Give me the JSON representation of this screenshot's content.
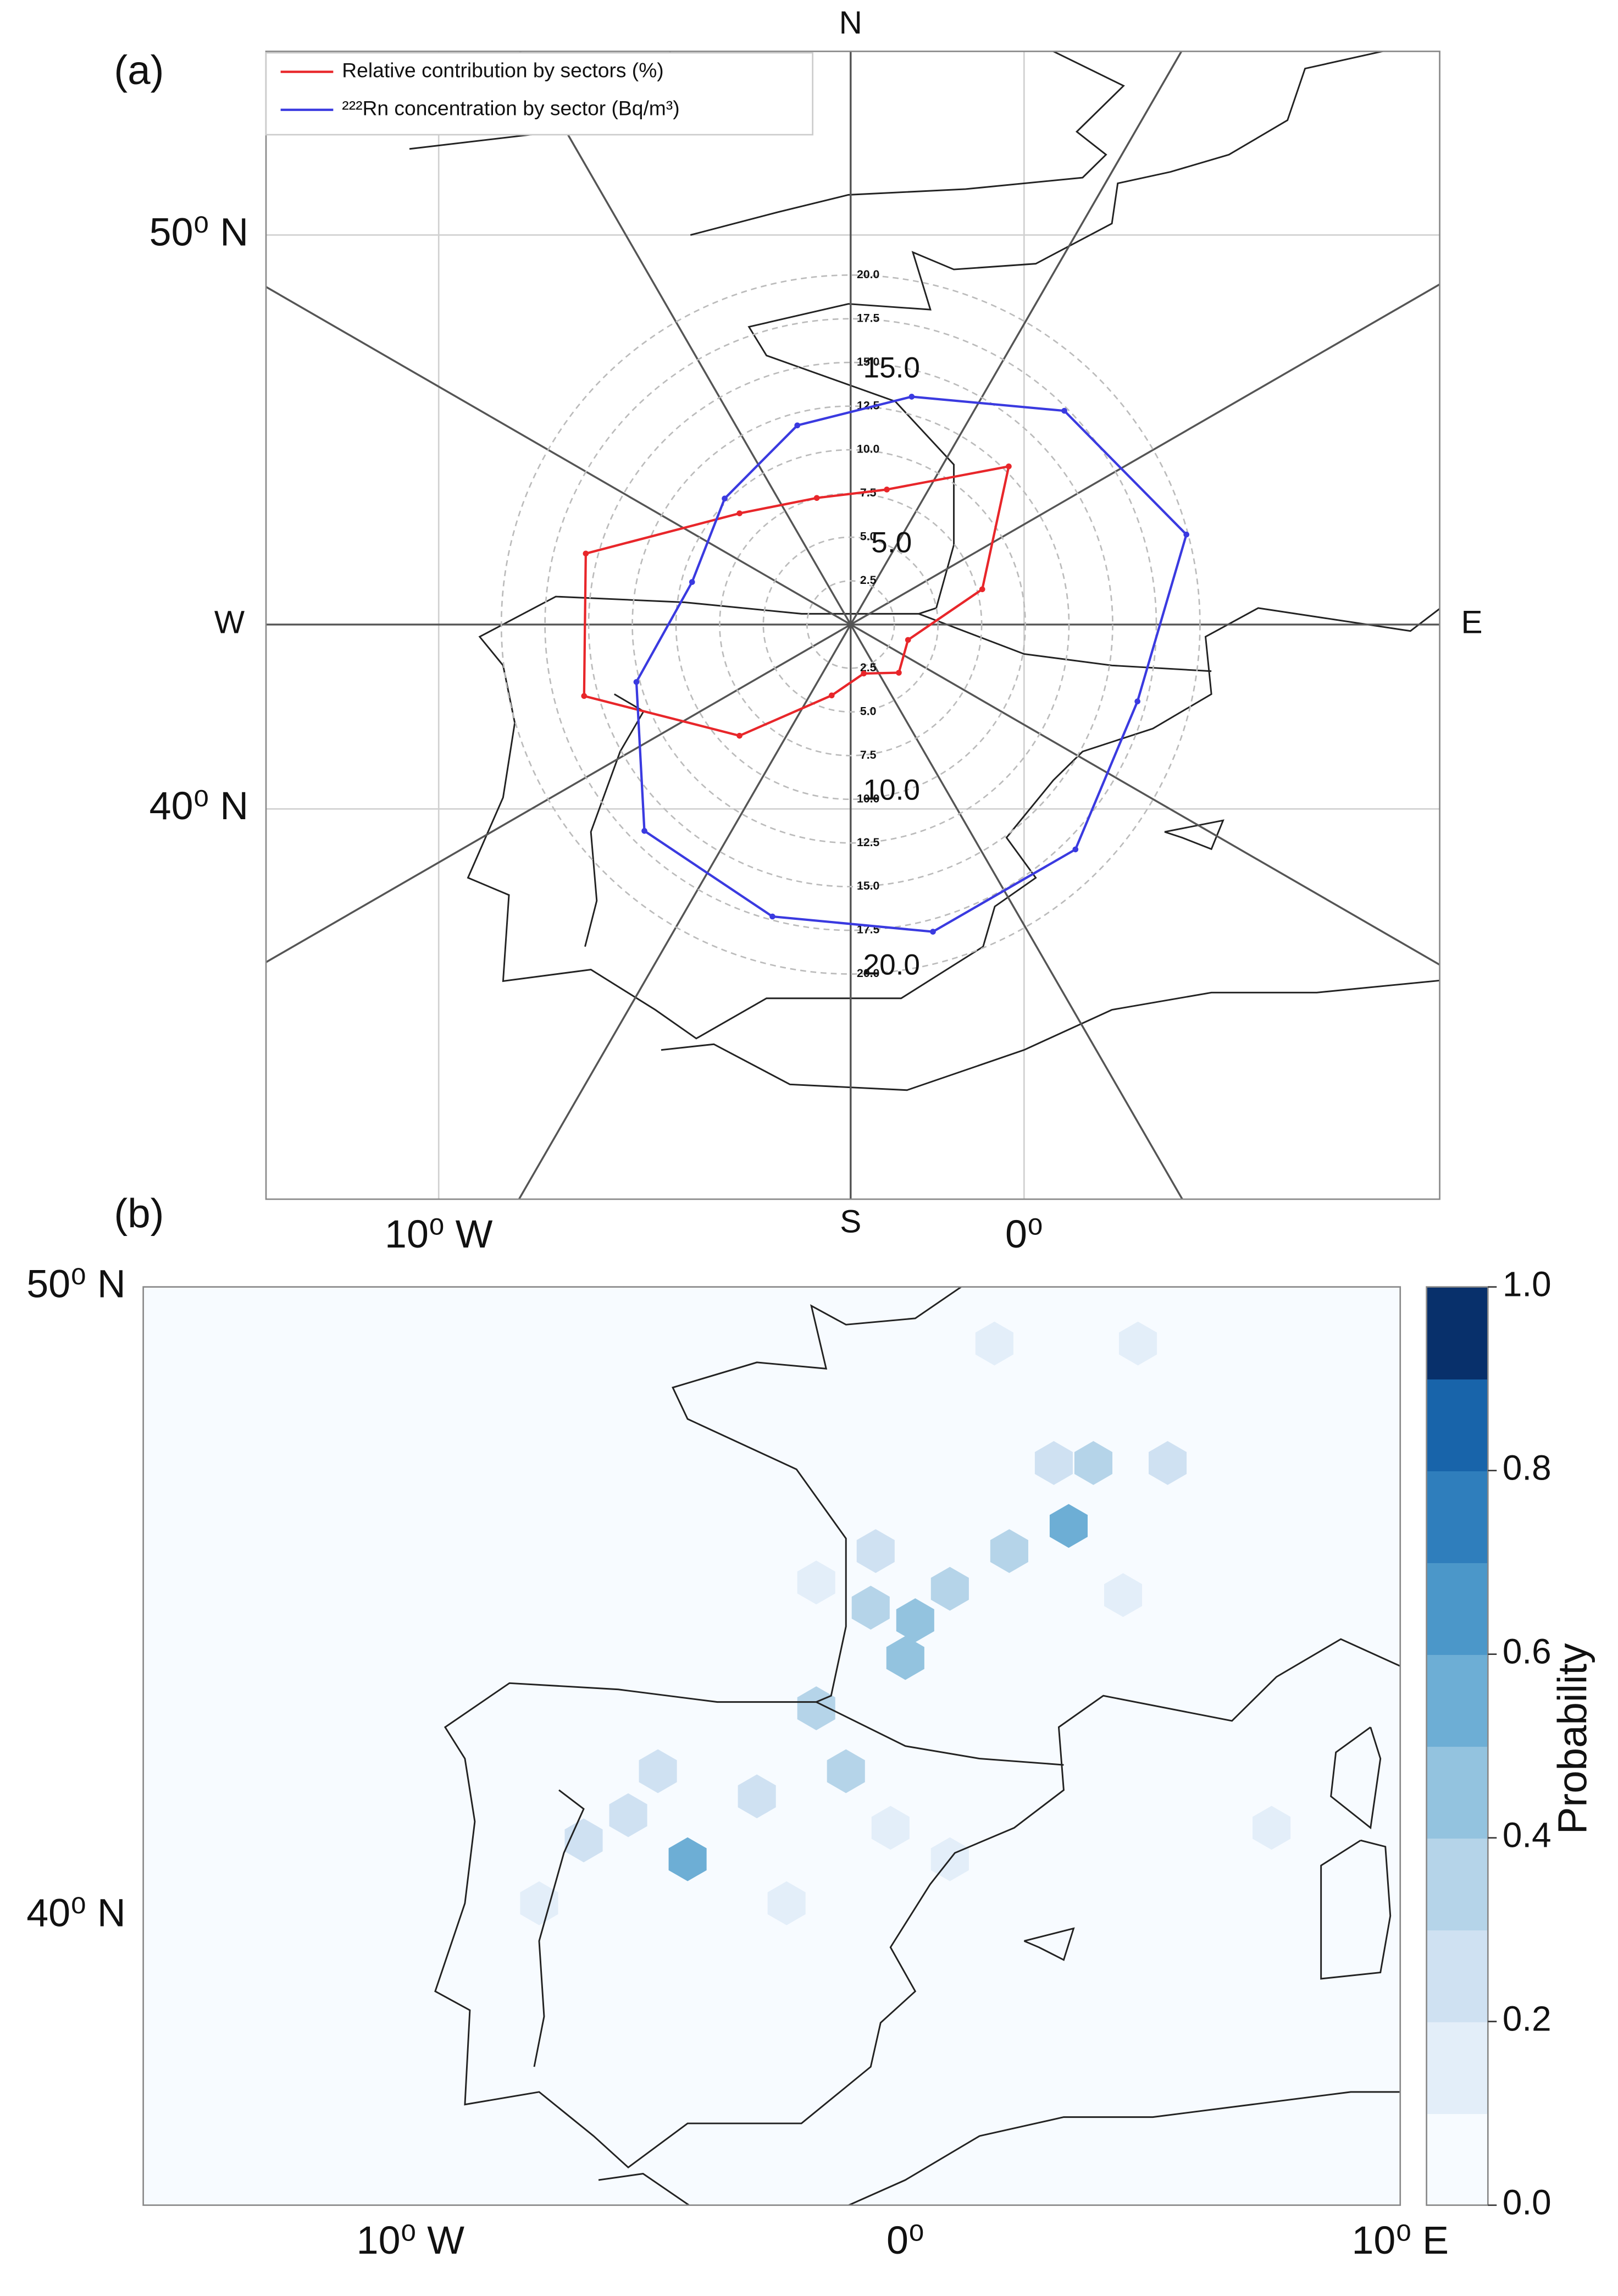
{
  "chart_data": [
    {
      "type": "polar",
      "panel": "(a)",
      "xlim": [
        -12.95,
        7.1
      ],
      "ylim": [
        33.2,
        53.2
      ],
      "xticks": [
        {
          "value": -10,
          "label": "10⁰ W"
        },
        {
          "value": 0,
          "label": "0⁰"
        }
      ],
      "yticks": [
        {
          "value": 40,
          "label": "40⁰ N"
        },
        {
          "value": 50,
          "label": "50⁰ N"
        }
      ],
      "directions": [
        "N",
        "E",
        "S",
        "W"
      ],
      "theta": [
        15,
        45,
        75,
        105,
        135,
        165,
        195,
        225,
        255,
        285,
        315,
        345
      ],
      "rlim": [
        0,
        20
      ],
      "rticks": [
        {
          "value": 2.5,
          "label": "2.5"
        },
        {
          "value": 5,
          "label": "5.0"
        },
        {
          "value": 7.5,
          "label": "7.5"
        },
        {
          "value": 10,
          "label": "10.0"
        },
        {
          "value": 12.5,
          "label": "12.5"
        },
        {
          "value": 15,
          "label": "15.0"
        },
        {
          "value": 17.5,
          "label": "17.5"
        },
        {
          "value": 20,
          "label": "20.0"
        }
      ],
      "large_rlabels": [
        {
          "value": 15,
          "label": "15.0"
        },
        {
          "value": 10,
          "label": "10.0"
        },
        {
          "value": 5,
          "label": "5.0"
        },
        {
          "value": 20,
          "label": "20.0"
        }
      ],
      "series": [
        {
          "name": "Relative  contribution by sectors (%)",
          "color": "#e8262a",
          "values": [
            8.0,
            12.8,
            7.8,
            3.4,
            3.9,
            2.9,
            4.2,
            9.0,
            15.8,
            15.7,
            9.0,
            7.5
          ]
        },
        {
          "name": "²²²Rn concentration by sector (Bq/m³)",
          "color": "#3a3ae0",
          "values": [
            13.5,
            17.3,
            19.9,
            17.0,
            18.2,
            18.2,
            17.3,
            16.7,
            12.7,
            9.4,
            10.2,
            11.8
          ]
        }
      ]
    },
    {
      "type": "hexbin",
      "panel": "(b)",
      "xlim": [
        -15.4,
        10
      ],
      "ylim": [
        35.4,
        50
      ],
      "xticks": [
        {
          "value": -10,
          "label": "10⁰ W"
        },
        {
          "value": 0,
          "label": "0⁰"
        },
        {
          "value": 10,
          "label": "10⁰ E"
        }
      ],
      "yticks": [
        {
          "value": 40,
          "label": "40⁰ N"
        },
        {
          "value": 50,
          "label": "50⁰ N"
        }
      ],
      "x": [
        3.3,
        0,
        0.2,
        -4.4,
        -1.2,
        0.9,
        2.1,
        3.8,
        3.0,
        -0.7,
        -0.6,
        -1.8,
        -5.6,
        -6.5,
        -5.0,
        -3.0,
        -0.3,
        0.9,
        -2.4,
        5.3,
        4.4,
        -1.8,
        1.8,
        4.7,
        -7.4,
        6.8,
        7.4
      ],
      "y": [
        46.2,
        44.1,
        44.7,
        40.9,
        42.3,
        45.2,
        45.8,
        47.2,
        47.2,
        44.9,
        45.8,
        43.3,
        41.6,
        41.2,
        42.3,
        41.9,
        41.4,
        40.9,
        40.2,
        47.2,
        45.1,
        45.3,
        49.1,
        49.1,
        40.2,
        38.1,
        41.4
      ],
      "values": [
        0.55,
        0.45,
        0.4,
        0.5,
        0.35,
        0.3,
        0.3,
        0.3,
        0.25,
        0.3,
        0.25,
        0.3,
        0.25,
        0.2,
        0.2,
        0.2,
        0.15,
        0.15,
        0.15,
        0.2,
        0.15,
        0.15,
        0.15,
        0.15,
        0.15,
        0.05,
        0.1
      ],
      "colormap": [
        "#f7fbff",
        "#e3eef9",
        "#cfe1f2",
        "#b5d4e9",
        "#93c3df",
        "#6daed5",
        "#4b97c9",
        "#2f7ebc",
        "#1864aa",
        "#08306b"
      ],
      "clim": [
        0,
        1
      ],
      "cticks": [
        {
          "value": 0,
          "label": "0.0"
        },
        {
          "value": 0.2,
          "label": "0.2"
        },
        {
          "value": 0.4,
          "label": "0.4"
        },
        {
          "value": 0.6,
          "label": "0.6"
        },
        {
          "value": 0.8,
          "label": "0.8"
        },
        {
          "value": 1,
          "label": "1.0"
        }
      ],
      "colorbar_label": "Probability"
    }
  ]
}
